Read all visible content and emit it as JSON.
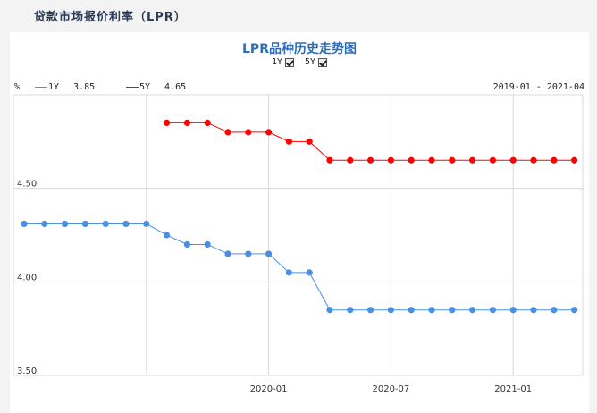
{
  "page": {
    "title": "贷款市场报价利率（LPR）"
  },
  "chart": {
    "title": "LPR品种历史走势图",
    "toggles": [
      {
        "label": "1Y",
        "checked": true
      },
      {
        "label": "5Y",
        "checked": true
      }
    ],
    "unit": "%",
    "date_range": "2019-01 - 2021-04",
    "legend": [
      {
        "name": "1Y",
        "value": "3.85",
        "color": "#4a90e2"
      },
      {
        "name": "5Y",
        "value": "4.65",
        "color": "#ff0000"
      }
    ]
  },
  "chart_data": {
    "type": "line",
    "x": [
      "2019-01",
      "2019-02",
      "2019-03",
      "2019-04",
      "2019-05",
      "2019-06",
      "2019-07",
      "2019-08",
      "2019-09",
      "2019-10",
      "2019-11",
      "2019-12",
      "2020-01",
      "2020-02",
      "2020-03",
      "2020-04",
      "2020-05",
      "2020-06",
      "2020-07",
      "2020-08",
      "2020-09",
      "2020-10",
      "2020-11",
      "2020-12",
      "2021-01",
      "2021-02",
      "2021-03",
      "2021-04"
    ],
    "x_tick_labels": [
      "2020-01",
      "2020-07",
      "2021-01"
    ],
    "y_tick_labels": [
      "3.50",
      "4.00",
      "4.50"
    ],
    "ylim": [
      3.5,
      5.0
    ],
    "grid": true,
    "series": [
      {
        "name": "1Y",
        "color": "#4a90e2",
        "values": [
          4.31,
          4.31,
          4.31,
          4.31,
          4.31,
          4.31,
          4.31,
          4.25,
          4.2,
          4.2,
          4.15,
          4.15,
          4.15,
          4.05,
          4.05,
          3.85,
          3.85,
          3.85,
          3.85,
          3.85,
          3.85,
          3.85,
          3.85,
          3.85,
          3.85,
          3.85,
          3.85,
          3.85
        ]
      },
      {
        "name": "5Y",
        "color": "#ff0000",
        "values": [
          null,
          null,
          null,
          null,
          null,
          null,
          null,
          4.85,
          4.85,
          4.85,
          4.8,
          4.8,
          4.8,
          4.75,
          4.75,
          4.65,
          4.65,
          4.65,
          4.65,
          4.65,
          4.65,
          4.65,
          4.65,
          4.65,
          4.65,
          4.65,
          4.65,
          4.65
        ]
      }
    ]
  }
}
